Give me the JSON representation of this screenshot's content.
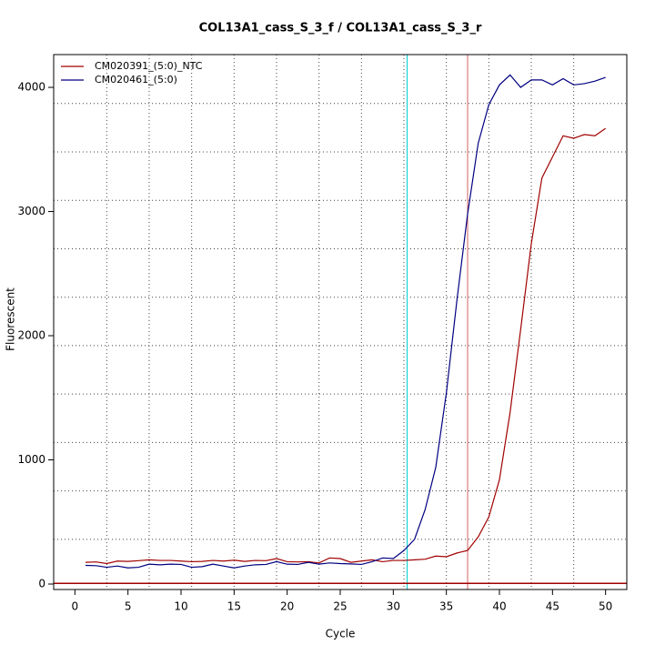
{
  "chart_data": {
    "type": "line",
    "title": "COL13A1_cass_S_3_f / COL13A1_cass_S_3_r",
    "xlabel": "Cycle",
    "ylabel": "Fluorescent",
    "x": [
      1,
      2,
      3,
      4,
      5,
      6,
      7,
      8,
      9,
      10,
      11,
      12,
      13,
      14,
      15,
      16,
      17,
      18,
      19,
      20,
      21,
      22,
      23,
      24,
      25,
      26,
      27,
      28,
      29,
      30,
      31,
      32,
      33,
      34,
      35,
      36,
      37,
      38,
      39,
      40,
      41,
      42,
      43,
      44,
      45,
      46,
      47,
      48,
      49,
      50
    ],
    "series": [
      {
        "name": "CM020391_(5:0)_NTC",
        "color": "#a00000",
        "values": [
          175,
          178,
          165,
          185,
          182,
          188,
          195,
          190,
          190,
          185,
          180,
          182,
          190,
          185,
          192,
          182,
          190,
          188,
          205,
          180,
          178,
          180,
          170,
          210,
          205,
          175,
          185,
          195,
          180,
          190,
          190,
          195,
          200,
          225,
          220,
          250,
          270,
          380,
          540,
          840,
          1380,
          2050,
          2740,
          3270,
          3440,
          3610,
          3590,
          3620,
          3610,
          3670
        ]
      },
      {
        "name": "CM020461_(5:0)",
        "color": "#000080",
        "values": [
          150,
          148,
          135,
          145,
          130,
          135,
          160,
          155,
          160,
          158,
          135,
          140,
          160,
          145,
          130,
          145,
          155,
          158,
          180,
          160,
          158,
          175,
          160,
          170,
          165,
          162,
          158,
          180,
          210,
          205,
          270,
          360,
          600,
          940,
          1540,
          2290,
          2980,
          3550,
          3860,
          4020,
          4100,
          4000,
          4060,
          4060,
          4020,
          4070,
          4020,
          4030,
          4050,
          4080
        ]
      }
    ],
    "xlim": [
      -2,
      52
    ],
    "ylim": [
      -44,
      4264
    ],
    "xticks": [
      0,
      5,
      10,
      15,
      20,
      25,
      30,
      35,
      40,
      45,
      50
    ],
    "yticks": [
      0,
      1000,
      2000,
      3000,
      4000
    ],
    "xgrid": [
      3,
      7,
      11,
      15,
      19,
      23,
      27,
      31,
      35,
      39,
      43,
      47
    ],
    "ygrid": [
      360,
      750,
      1140,
      1530,
      1920,
      2310,
      2700,
      3090,
      3480,
      3870
    ],
    "vlines": [
      {
        "value": 31.3,
        "color": "#00d0d0"
      },
      {
        "value": 37,
        "color": "#d06060"
      }
    ],
    "hlines": [
      {
        "value": 5,
        "color": "#a00000"
      }
    ],
    "legend": "top-left"
  }
}
